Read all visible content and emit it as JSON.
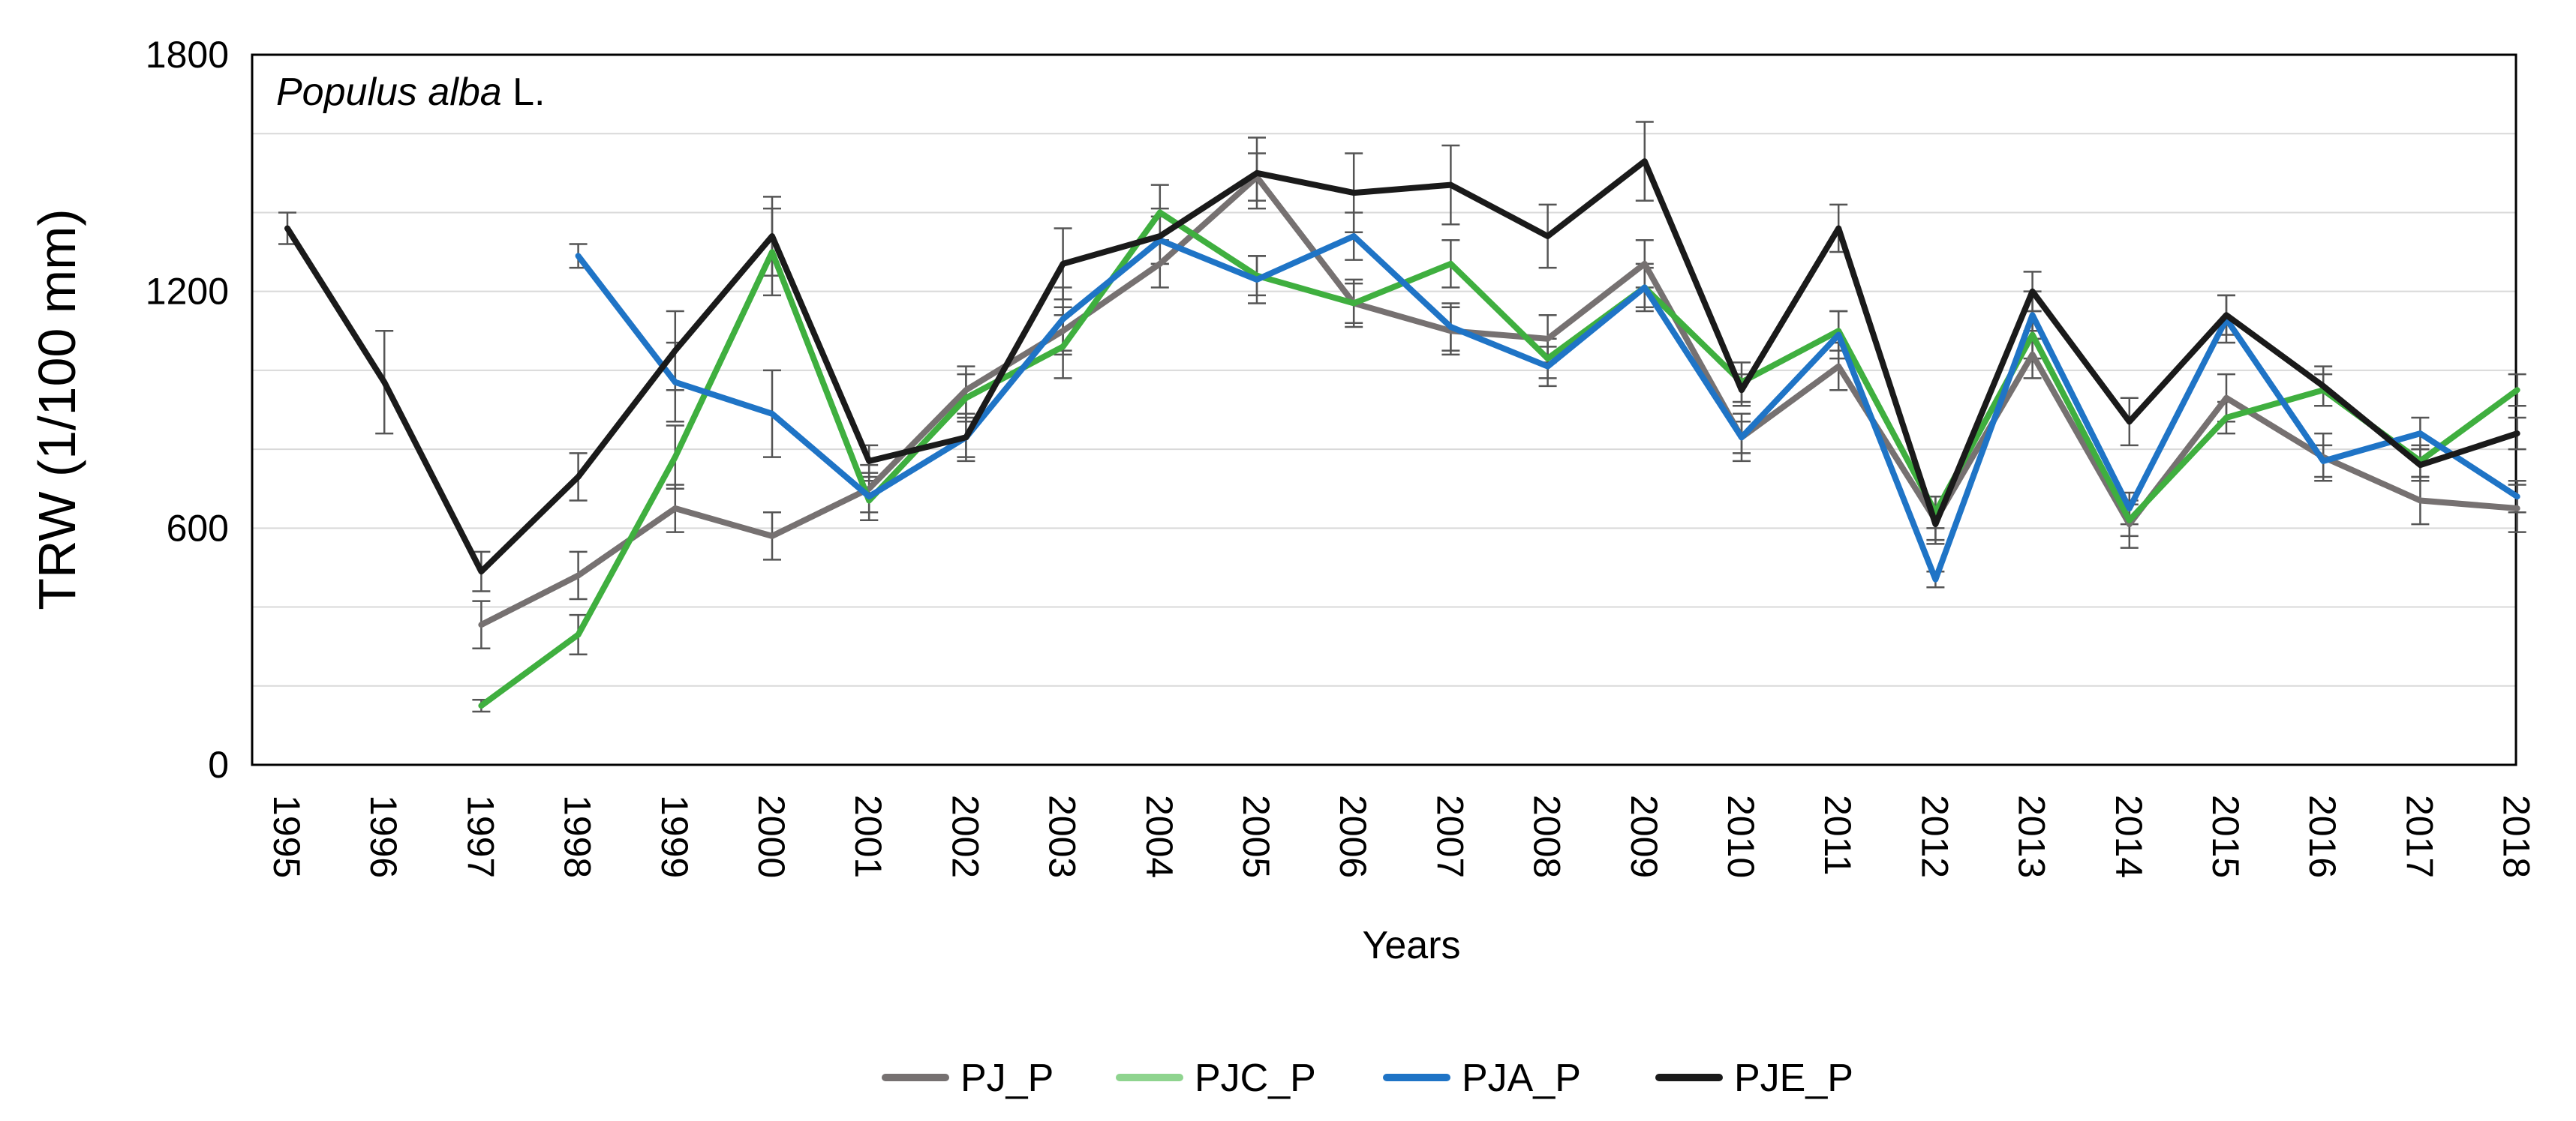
{
  "chart_data": {
    "type": "line",
    "title_italic": "Populus alba",
    "title_suffix": " L.",
    "xlabel": "Years",
    "ylabel": "TRW (1/100 mm)",
    "ylim": [
      0,
      1800
    ],
    "yticks": [
      0,
      600,
      1200,
      1800
    ],
    "y_gridlines": [
      200,
      400,
      600,
      800,
      1000,
      1200,
      1400,
      1600
    ],
    "categories": [
      "1995",
      "1996",
      "1997",
      "1998",
      "1999",
      "2000",
      "2001",
      "2002",
      "2003",
      "2004",
      "2005",
      "2006",
      "2007",
      "2008",
      "2009",
      "2010",
      "2011",
      "2012",
      "2013",
      "2014",
      "2015",
      "2016",
      "2017",
      "2018"
    ],
    "legend_position": "bottom-center",
    "series": [
      {
        "name": "PJ_P",
        "color": "#767171",
        "legend_color": "#767171",
        "values": [
          null,
          null,
          355,
          480,
          650,
          580,
          700,
          950,
          1100,
          1270,
          1490,
          1170,
          1100,
          1080,
          1270,
          830,
          1010,
          620,
          1040,
          610,
          930,
          780,
          670,
          650
        ],
        "errors": [
          null,
          null,
          60,
          60,
          60,
          60,
          60,
          60,
          60,
          60,
          60,
          60,
          60,
          60,
          60,
          60,
          60,
          60,
          60,
          60,
          60,
          60,
          60,
          60
        ]
      },
      {
        "name": "PJC_P",
        "color": "#3FAF3F",
        "legend_color": "#8FD48F",
        "values": [
          null,
          null,
          150,
          330,
          780,
          1300,
          670,
          930,
          1060,
          1400,
          1240,
          1170,
          1270,
          1030,
          1210,
          970,
          1100,
          640,
          1090,
          620,
          880,
          950,
          770,
          950
        ],
        "errors": [
          null,
          null,
          15,
          50,
          80,
          110,
          50,
          60,
          80,
          70,
          50,
          50,
          60,
          50,
          50,
          50,
          50,
          40,
          60,
          40,
          40,
          40,
          40,
          40
        ]
      },
      {
        "name": "PJA_P",
        "color": "#1F74C6",
        "legend_color": "#1F74C6",
        "values": [
          null,
          null,
          null,
          1290,
          970,
          890,
          680,
          830,
          1130,
          1330,
          1230,
          1340,
          1110,
          1010,
          1210,
          830,
          1090,
          470,
          1140,
          650,
          1130,
          770,
          840,
          680
        ],
        "errors": [
          null,
          null,
          null,
          30,
          100,
          110,
          60,
          60,
          80,
          60,
          60,
          60,
          60,
          50,
          60,
          40,
          60,
          20,
          60,
          40,
          60,
          40,
          40,
          40
        ]
      },
      {
        "name": "PJE_P",
        "color": "#1A1A1A",
        "legend_color": "#1A1A1A",
        "values": [
          1360,
          970,
          490,
          730,
          1050,
          1340,
          770,
          830,
          1270,
          1340,
          1500,
          1450,
          1470,
          1340,
          1530,
          950,
          1360,
          610,
          1200,
          870,
          1140,
          960,
          760,
          840
        ],
        "errors": [
          40,
          130,
          50,
          60,
          100,
          100,
          40,
          50,
          90,
          70,
          90,
          100,
          100,
          80,
          100,
          40,
          60,
          40,
          50,
          60,
          50,
          50,
          40,
          40
        ]
      }
    ]
  }
}
